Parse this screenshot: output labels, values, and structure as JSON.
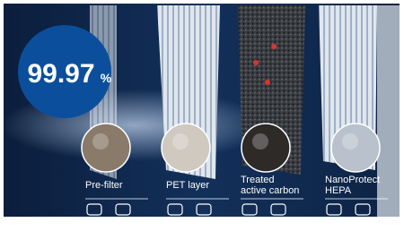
{
  "badge": {
    "number": "99.97",
    "unit": "%"
  },
  "layers": [
    {
      "label_lines": [
        "Pre-filter"
      ]
    },
    {
      "label_lines": [
        "PET layer"
      ]
    },
    {
      "label_lines": [
        "Treated",
        "active carbon"
      ]
    },
    {
      "label_lines": [
        "NanoProtect",
        "HEPA"
      ]
    }
  ]
}
